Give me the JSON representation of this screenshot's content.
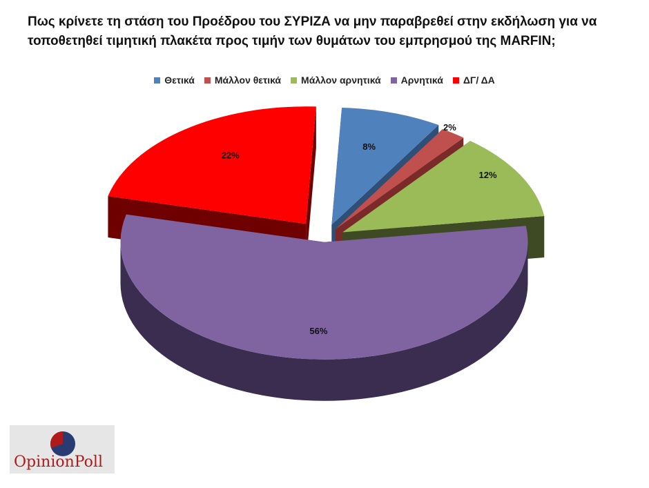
{
  "title": "Πως κρίνετε τη στάση του Προέδρου του ΣΥΡΙΖΑ να μην παραβρεθεί στην εκδήλωση για να τοποθετηθεί τιμητική πλακέτα προς τιμήν των θυμάτων του εμπρησμού της MARFIN;",
  "logo": {
    "text": "OpinionPoll",
    "mark_icon": "opinionpoll-logo-icon"
  },
  "chart_data": {
    "type": "pie",
    "title": "Πως κρίνετε τη στάση του Προέδρου του ΣΥΡΙΖΑ να μην παραβρεθεί στην εκδήλωση για να τοποθετηθεί τιμητική πλακέτα προς τιμήν των θυμάτων του εμπρησμού της MARFIN;",
    "legend_position": "top",
    "three_d": true,
    "exploded": true,
    "slices": [
      {
        "name": "Θετικά",
        "value": 8,
        "label": "8%",
        "color": "#4f81bd",
        "side_color": "#2e4f78"
      },
      {
        "name": "Μάλλον θετικά",
        "value": 2,
        "label": "2%",
        "color": "#c0504d",
        "side_color": "#7a2b29"
      },
      {
        "name": "Μάλλον αρνητικά",
        "value": 12,
        "label": "12%",
        "color": "#9bbb59",
        "side_color": "#3e4a24"
      },
      {
        "name": "Αρνητικά",
        "value": 56,
        "label": "56%",
        "color": "#8064a2",
        "side_color": "#3a2d4f"
      },
      {
        "name": "ΔΓ/ ΔΑ",
        "value": 22,
        "label": "22%",
        "color": "#ff0000",
        "side_color": "#6e0000"
      }
    ]
  }
}
